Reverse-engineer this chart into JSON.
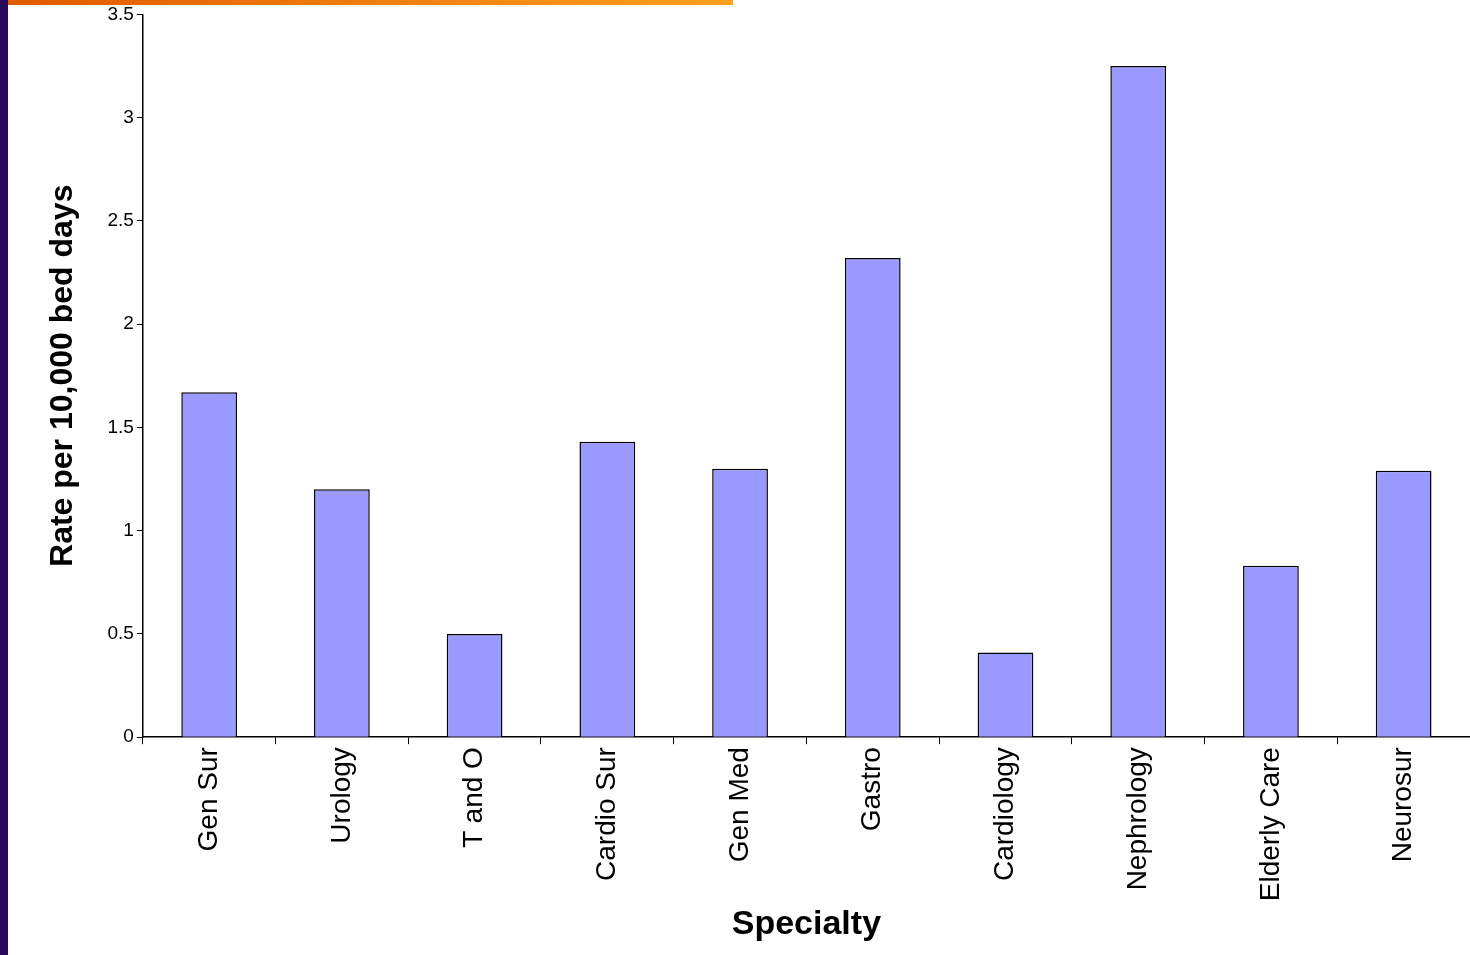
{
  "chart_data": {
    "type": "bar",
    "xlabel": "Specialty",
    "ylabel": "Rate per 10,000 bed days",
    "categories": [
      "Gen Sur",
      "Urology",
      "T and O",
      "Cardio Sur",
      "Gen Med",
      "Gastro",
      "Cardiology",
      "Nephrology",
      "Elderly Care",
      "Neurosur"
    ],
    "values": [
      1.67,
      1.2,
      0.5,
      1.43,
      1.3,
      2.32,
      0.41,
      3.25,
      0.83,
      1.29
    ],
    "color": "#9999ff",
    "ylim": [
      0,
      3.5
    ],
    "yticks": [
      0,
      0.5,
      1,
      1.5,
      2,
      2.5,
      3,
      3.5
    ],
    "grid": false,
    "legend": false
  }
}
